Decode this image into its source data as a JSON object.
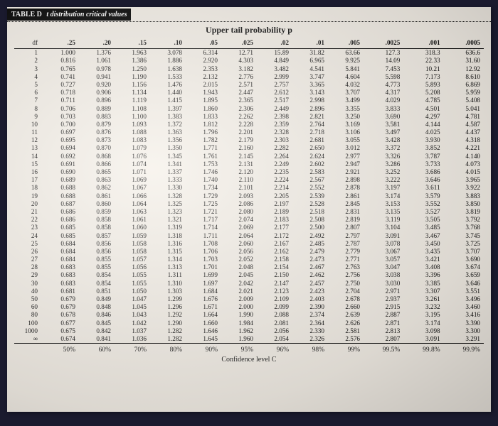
{
  "title_label": "TABLE D",
  "title_text": "t distribution critical values",
  "heading": "Upper tail probability p",
  "df_label": "df",
  "conf_label": "Confidence level C",
  "colors": {
    "page_bg": "#f5f0e8",
    "titlebar_bg": "#000000",
    "titlebar_fg": "#ffffff",
    "text": "#111111",
    "border": "#000000"
  },
  "typography": {
    "title_fontsize": 10,
    "heading_fontsize": 12,
    "body_fontsize": 9.2,
    "font_family": "serif"
  },
  "prob_headers": [
    ".25",
    ".20",
    ".15",
    ".10",
    ".05",
    ".025",
    ".02",
    ".01",
    ".005",
    ".0025",
    ".001",
    ".0005"
  ],
  "conf_footers": [
    "50%",
    "60%",
    "70%",
    "80%",
    "90%",
    "95%",
    "96%",
    "98%",
    "99%",
    "99.5%",
    "99.8%",
    "99.9%"
  ],
  "rows": [
    {
      "df": "1",
      "v": [
        "1.000",
        "1.376",
        "1.963",
        "3.078",
        "6.314",
        "12.71",
        "15.89",
        "31.82",
        "63.66",
        "127.3",
        "318.3",
        "636.6"
      ]
    },
    {
      "df": "2",
      "v": [
        "0.816",
        "1.061",
        "1.386",
        "1.886",
        "2.920",
        "4.303",
        "4.849",
        "6.965",
        "9.925",
        "14.09",
        "22.33",
        "31.60"
      ]
    },
    {
      "df": "3",
      "v": [
        "0.765",
        "0.978",
        "1.250",
        "1.638",
        "2.353",
        "3.182",
        "3.482",
        "4.541",
        "5.841",
        "7.453",
        "10.21",
        "12.92"
      ]
    },
    {
      "df": "4",
      "v": [
        "0.741",
        "0.941",
        "1.190",
        "1.533",
        "2.132",
        "2.776",
        "2.999",
        "3.747",
        "4.604",
        "5.598",
        "7.173",
        "8.610"
      ]
    },
    {
      "df": "5",
      "v": [
        "0.727",
        "0.920",
        "1.156",
        "1.476",
        "2.015",
        "2.571",
        "2.757",
        "3.365",
        "4.032",
        "4.773",
        "5.893",
        "6.869"
      ]
    },
    {
      "df": "6",
      "v": [
        "0.718",
        "0.906",
        "1.134",
        "1.440",
        "1.943",
        "2.447",
        "2.612",
        "3.143",
        "3.707",
        "4.317",
        "5.208",
        "5.959"
      ]
    },
    {
      "df": "7",
      "v": [
        "0.711",
        "0.896",
        "1.119",
        "1.415",
        "1.895",
        "2.365",
        "2.517",
        "2.998",
        "3.499",
        "4.029",
        "4.785",
        "5.408"
      ]
    },
    {
      "df": "8",
      "v": [
        "0.706",
        "0.889",
        "1.108",
        "1.397",
        "1.860",
        "2.306",
        "2.449",
        "2.896",
        "3.355",
        "3.833",
        "4.501",
        "5.041"
      ]
    },
    {
      "df": "9",
      "v": [
        "0.703",
        "0.883",
        "1.100",
        "1.383",
        "1.833",
        "2.262",
        "2.398",
        "2.821",
        "3.250",
        "3.690",
        "4.297",
        "4.781"
      ]
    },
    {
      "df": "10",
      "v": [
        "0.700",
        "0.879",
        "1.093",
        "1.372",
        "1.812",
        "2.228",
        "2.359",
        "2.764",
        "3.169",
        "3.581",
        "4.144",
        "4.587"
      ]
    },
    {
      "df": "11",
      "v": [
        "0.697",
        "0.876",
        "1.088",
        "1.363",
        "1.796",
        "2.201",
        "2.328",
        "2.718",
        "3.106",
        "3.497",
        "4.025",
        "4.437"
      ]
    },
    {
      "df": "12",
      "v": [
        "0.695",
        "0.873",
        "1.083",
        "1.356",
        "1.782",
        "2.179",
        "2.303",
        "2.681",
        "3.055",
        "3.428",
        "3.930",
        "4.318"
      ]
    },
    {
      "df": "13",
      "v": [
        "0.694",
        "0.870",
        "1.079",
        "1.350",
        "1.771",
        "2.160",
        "2.282",
        "2.650",
        "3.012",
        "3.372",
        "3.852",
        "4.221"
      ]
    },
    {
      "df": "14",
      "v": [
        "0.692",
        "0.868",
        "1.076",
        "1.345",
        "1.761",
        "2.145",
        "2.264",
        "2.624",
        "2.977",
        "3.326",
        "3.787",
        "4.140"
      ]
    },
    {
      "df": "15",
      "v": [
        "0.691",
        "0.866",
        "1.074",
        "1.341",
        "1.753",
        "2.131",
        "2.249",
        "2.602",
        "2.947",
        "3.286",
        "3.733",
        "4.073"
      ]
    },
    {
      "df": "16",
      "v": [
        "0.690",
        "0.865",
        "1.071",
        "1.337",
        "1.746",
        "2.120",
        "2.235",
        "2.583",
        "2.921",
        "3.252",
        "3.686",
        "4.015"
      ]
    },
    {
      "df": "17",
      "v": [
        "0.689",
        "0.863",
        "1.069",
        "1.333",
        "1.740",
        "2.110",
        "2.224",
        "2.567",
        "2.898",
        "3.222",
        "3.646",
        "3.965"
      ]
    },
    {
      "df": "18",
      "v": [
        "0.688",
        "0.862",
        "1.067",
        "1.330",
        "1.734",
        "2.101",
        "2.214",
        "2.552",
        "2.878",
        "3.197",
        "3.611",
        "3.922"
      ]
    },
    {
      "df": "19",
      "v": [
        "0.688",
        "0.861",
        "1.066",
        "1.328",
        "1.729",
        "2.093",
        "2.205",
        "2.539",
        "2.861",
        "3.174",
        "3.579",
        "3.883"
      ]
    },
    {
      "df": "20",
      "v": [
        "0.687",
        "0.860",
        "1.064",
        "1.325",
        "1.725",
        "2.086",
        "2.197",
        "2.528",
        "2.845",
        "3.153",
        "3.552",
        "3.850"
      ]
    },
    {
      "df": "21",
      "v": [
        "0.686",
        "0.859",
        "1.063",
        "1.323",
        "1.721",
        "2.080",
        "2.189",
        "2.518",
        "2.831",
        "3.135",
        "3.527",
        "3.819"
      ]
    },
    {
      "df": "22",
      "v": [
        "0.686",
        "0.858",
        "1.061",
        "1.321",
        "1.717",
        "2.074",
        "2.183",
        "2.508",
        "2.819",
        "3.119",
        "3.505",
        "3.792"
      ]
    },
    {
      "df": "23",
      "v": [
        "0.685",
        "0.858",
        "1.060",
        "1.319",
        "1.714",
        "2.069",
        "2.177",
        "2.500",
        "2.807",
        "3.104",
        "3.485",
        "3.768"
      ]
    },
    {
      "df": "24",
      "v": [
        "0.685",
        "0.857",
        "1.059",
        "1.318",
        "1.711",
        "2.064",
        "2.172",
        "2.492",
        "2.797",
        "3.091",
        "3.467",
        "3.745"
      ]
    },
    {
      "df": "25",
      "v": [
        "0.684",
        "0.856",
        "1.058",
        "1.316",
        "1.708",
        "2.060",
        "2.167",
        "2.485",
        "2.787",
        "3.078",
        "3.450",
        "3.725"
      ]
    },
    {
      "df": "26",
      "v": [
        "0.684",
        "0.856",
        "1.058",
        "1.315",
        "1.706",
        "2.056",
        "2.162",
        "2.479",
        "2.779",
        "3.067",
        "3.435",
        "3.707"
      ]
    },
    {
      "df": "27",
      "v": [
        "0.684",
        "0.855",
        "1.057",
        "1.314",
        "1.703",
        "2.052",
        "2.158",
        "2.473",
        "2.771",
        "3.057",
        "3.421",
        "3.690"
      ]
    },
    {
      "df": "28",
      "v": [
        "0.683",
        "0.855",
        "1.056",
        "1.313",
        "1.701",
        "2.048",
        "2.154",
        "2.467",
        "2.763",
        "3.047",
        "3.408",
        "3.674"
      ]
    },
    {
      "df": "29",
      "v": [
        "0.683",
        "0.854",
        "1.055",
        "1.311",
        "1.699",
        "2.045",
        "2.150",
        "2.462",
        "2.756",
        "3.038",
        "3.396",
        "3.659"
      ]
    },
    {
      "df": "30",
      "v": [
        "0.683",
        "0.854",
        "1.055",
        "1.310",
        "1.697",
        "2.042",
        "2.147",
        "2.457",
        "2.750",
        "3.030",
        "3.385",
        "3.646"
      ]
    },
    {
      "df": "40",
      "v": [
        "0.681",
        "0.851",
        "1.050",
        "1.303",
        "1.684",
        "2.021",
        "2.123",
        "2.423",
        "2.704",
        "2.971",
        "3.307",
        "3.551"
      ]
    },
    {
      "df": "50",
      "v": [
        "0.679",
        "0.849",
        "1.047",
        "1.299",
        "1.676",
        "2.009",
        "2.109",
        "2.403",
        "2.678",
        "2.937",
        "3.261",
        "3.496"
      ]
    },
    {
      "df": "60",
      "v": [
        "0.679",
        "0.848",
        "1.045",
        "1.296",
        "1.671",
        "2.000",
        "2.099",
        "2.390",
        "2.660",
        "2.915",
        "3.232",
        "3.460"
      ]
    },
    {
      "df": "80",
      "v": [
        "0.678",
        "0.846",
        "1.043",
        "1.292",
        "1.664",
        "1.990",
        "2.088",
        "2.374",
        "2.639",
        "2.887",
        "3.195",
        "3.416"
      ]
    },
    {
      "df": "100",
      "v": [
        "0.677",
        "0.845",
        "1.042",
        "1.290",
        "1.660",
        "1.984",
        "2.081",
        "2.364",
        "2.626",
        "2.871",
        "3.174",
        "3.390"
      ]
    },
    {
      "df": "1000",
      "v": [
        "0.675",
        "0.842",
        "1.037",
        "1.282",
        "1.646",
        "1.962",
        "2.056",
        "2.330",
        "2.581",
        "2.813",
        "3.098",
        "3.300"
      ]
    },
    {
      "df": "∞",
      "v": [
        "0.674",
        "0.841",
        "1.036",
        "1.282",
        "1.645",
        "1.960",
        "2.054",
        "2.326",
        "2.576",
        "2.807",
        "3.091",
        "3.291"
      ]
    }
  ]
}
